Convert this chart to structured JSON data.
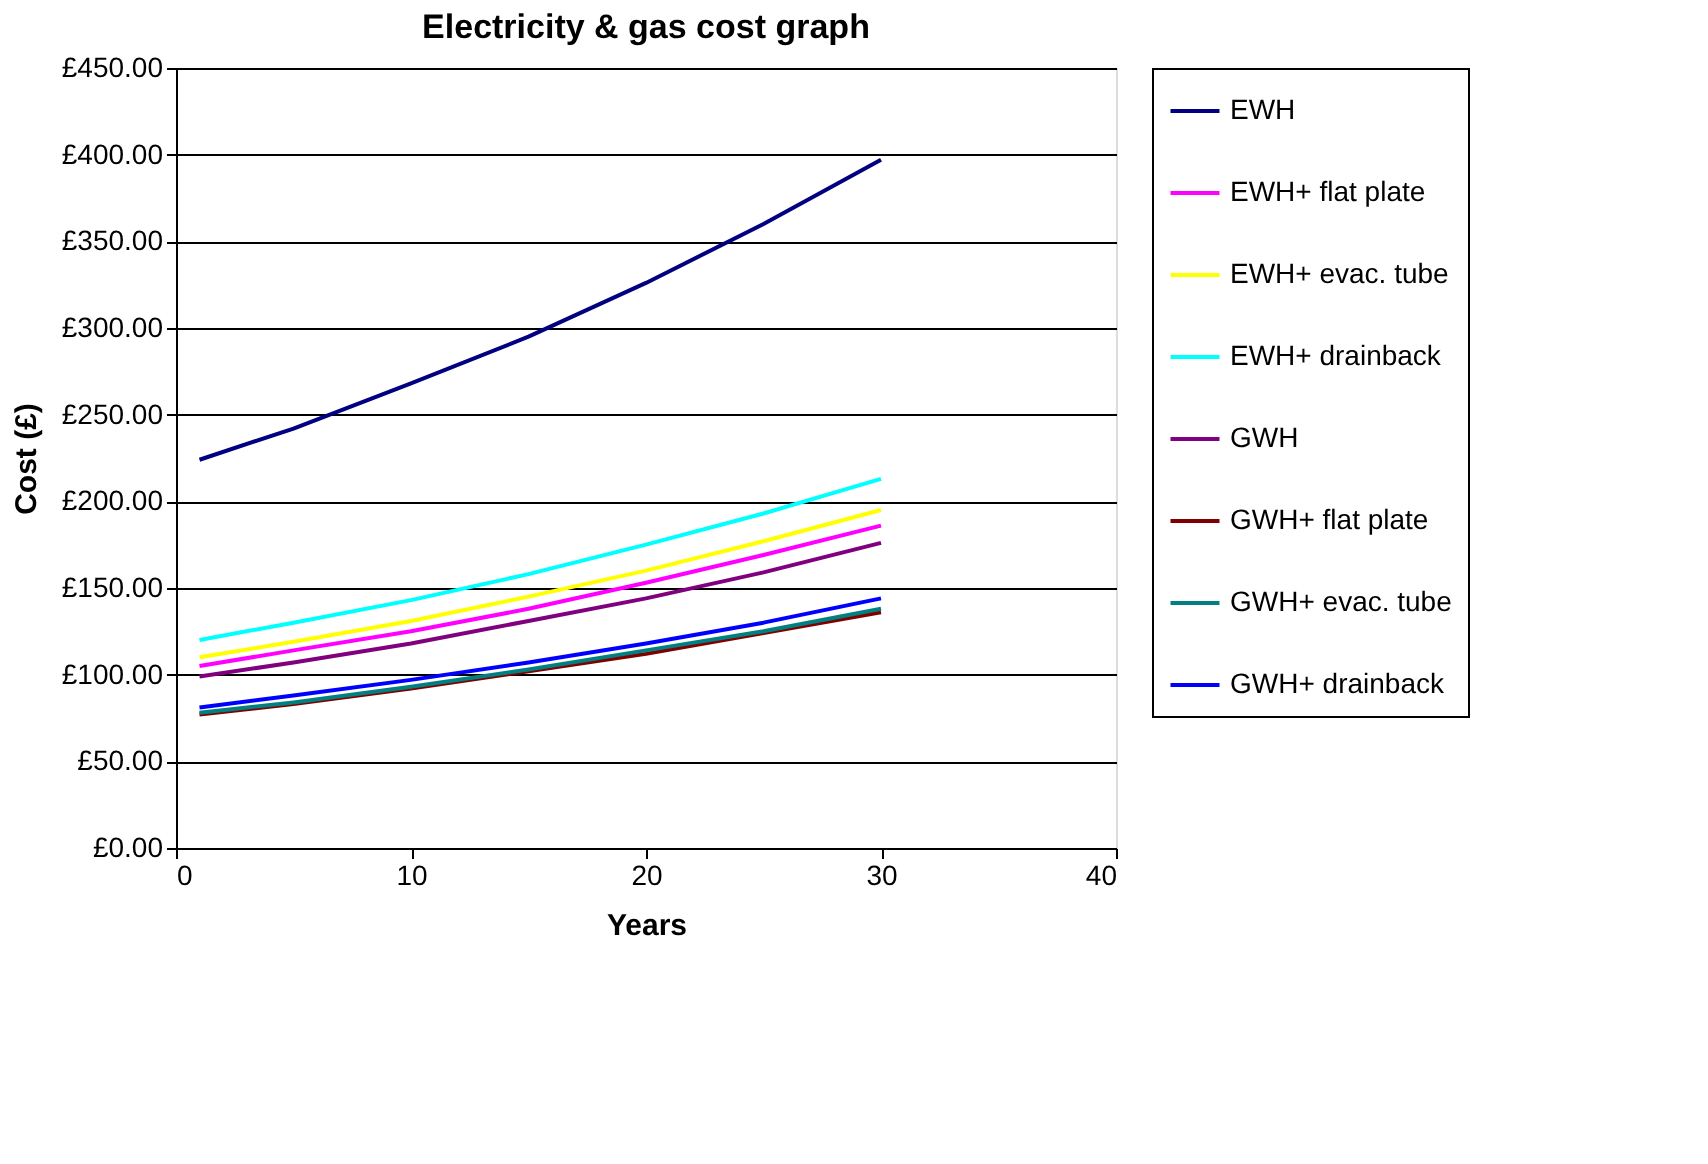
{
  "chart_data": {
    "type": "line",
    "title": "Electricity & gas cost graph",
    "xlabel": "Years",
    "ylabel": "Cost (£)",
    "x": [
      1,
      5,
      10,
      15,
      20,
      25,
      30
    ],
    "series": [
      {
        "name": "EWH",
        "color": "#000080",
        "values": [
          224,
          242,
          268,
          295,
          326,
          360,
          397
        ]
      },
      {
        "name": "EWH+ flat plate",
        "color": "#ff00ff",
        "values": [
          105,
          114,
          125,
          138,
          153,
          169,
          186
        ]
      },
      {
        "name": "EWH+ evac. tube",
        "color": "#ffff00",
        "values": [
          110,
          119,
          131,
          145,
          160,
          177,
          195
        ]
      },
      {
        "name": "EWH+ drainback",
        "color": "#00ffff",
        "values": [
          120,
          130,
          143,
          158,
          175,
          193,
          213
        ]
      },
      {
        "name": "GWH",
        "color": "#800080",
        "values": [
          99,
          107,
          118,
          131,
          144,
          159,
          176
        ]
      },
      {
        "name": "GWH+ flat plate",
        "color": "#800000",
        "values": [
          77,
          83,
          92,
          102,
          112,
          124,
          136
        ]
      },
      {
        "name": "GWH+ evac. tube",
        "color": "#008080",
        "values": [
          78,
          84,
          93,
          103,
          114,
          125,
          138
        ]
      },
      {
        "name": "GWH+ drainback",
        "color": "#0000ff",
        "values": [
          81,
          88,
          97,
          107,
          118,
          130,
          144
        ]
      }
    ],
    "xlim": [
      0,
      40
    ],
    "xticks": [
      0,
      10,
      20,
      30,
      40
    ],
    "ylim": [
      0,
      450
    ],
    "yticks": [
      {
        "value": 0,
        "label": "£0.00"
      },
      {
        "value": 50,
        "label": "£50.00"
      },
      {
        "value": 100,
        "label": "£100.00"
      },
      {
        "value": 150,
        "label": "£150.00"
      },
      {
        "value": 200,
        "label": "£200.00"
      },
      {
        "value": 250,
        "label": "£250.00"
      },
      {
        "value": 300,
        "label": "£300.00"
      },
      {
        "value": 350,
        "label": "£350.00"
      },
      {
        "value": 400,
        "label": "£400.00"
      },
      {
        "value": 450,
        "label": "£450.00"
      }
    ],
    "grid": "y",
    "legend": "right",
    "marker": "none",
    "line_style": "solid"
  }
}
